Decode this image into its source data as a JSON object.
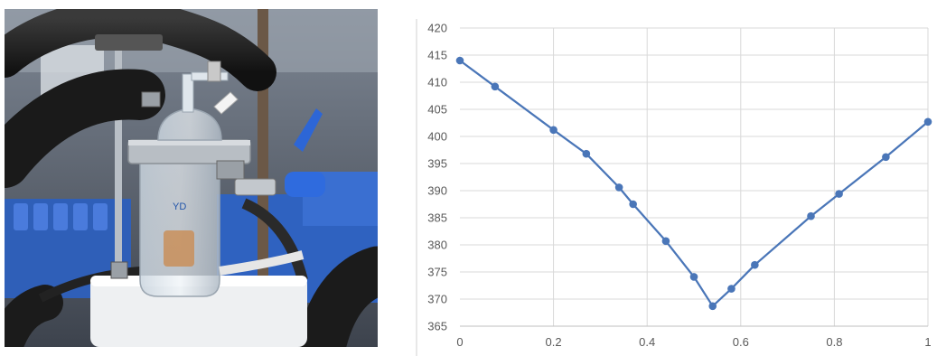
{
  "photo": {
    "jar_label": "YD"
  },
  "chart_data": {
    "type": "line",
    "title": "",
    "xlabel": "",
    "ylabel": "",
    "xlim": [
      0,
      1
    ],
    "ylim": [
      365,
      420
    ],
    "x_ticks": [
      "0",
      "0.2",
      "0.4",
      "0.6",
      "0.8",
      "1"
    ],
    "y_ticks": [
      "365",
      "370",
      "375",
      "380",
      "385",
      "390",
      "395",
      "400",
      "405",
      "410",
      "415",
      "420"
    ],
    "grid": true,
    "legend": "none",
    "series": [
      {
        "color": "#4a76b8",
        "marker": "circle",
        "x": [
          0,
          0.075,
          0.2,
          0.27,
          0.34,
          0.37,
          0.44,
          0.5,
          0.54,
          0.58,
          0.63,
          0.75,
          0.81,
          0.91,
          1.0
        ],
        "y": [
          414,
          409.2,
          401.2,
          396.8,
          390.6,
          387.5,
          380.7,
          374.1,
          368.7,
          371.9,
          376.3,
          385.3,
          389.4,
          396.2,
          402.7
        ]
      }
    ],
    "colors": {
      "grid": "#d9d9d9",
      "axis": "#bfbfbf",
      "tick_label": "#595959"
    }
  }
}
